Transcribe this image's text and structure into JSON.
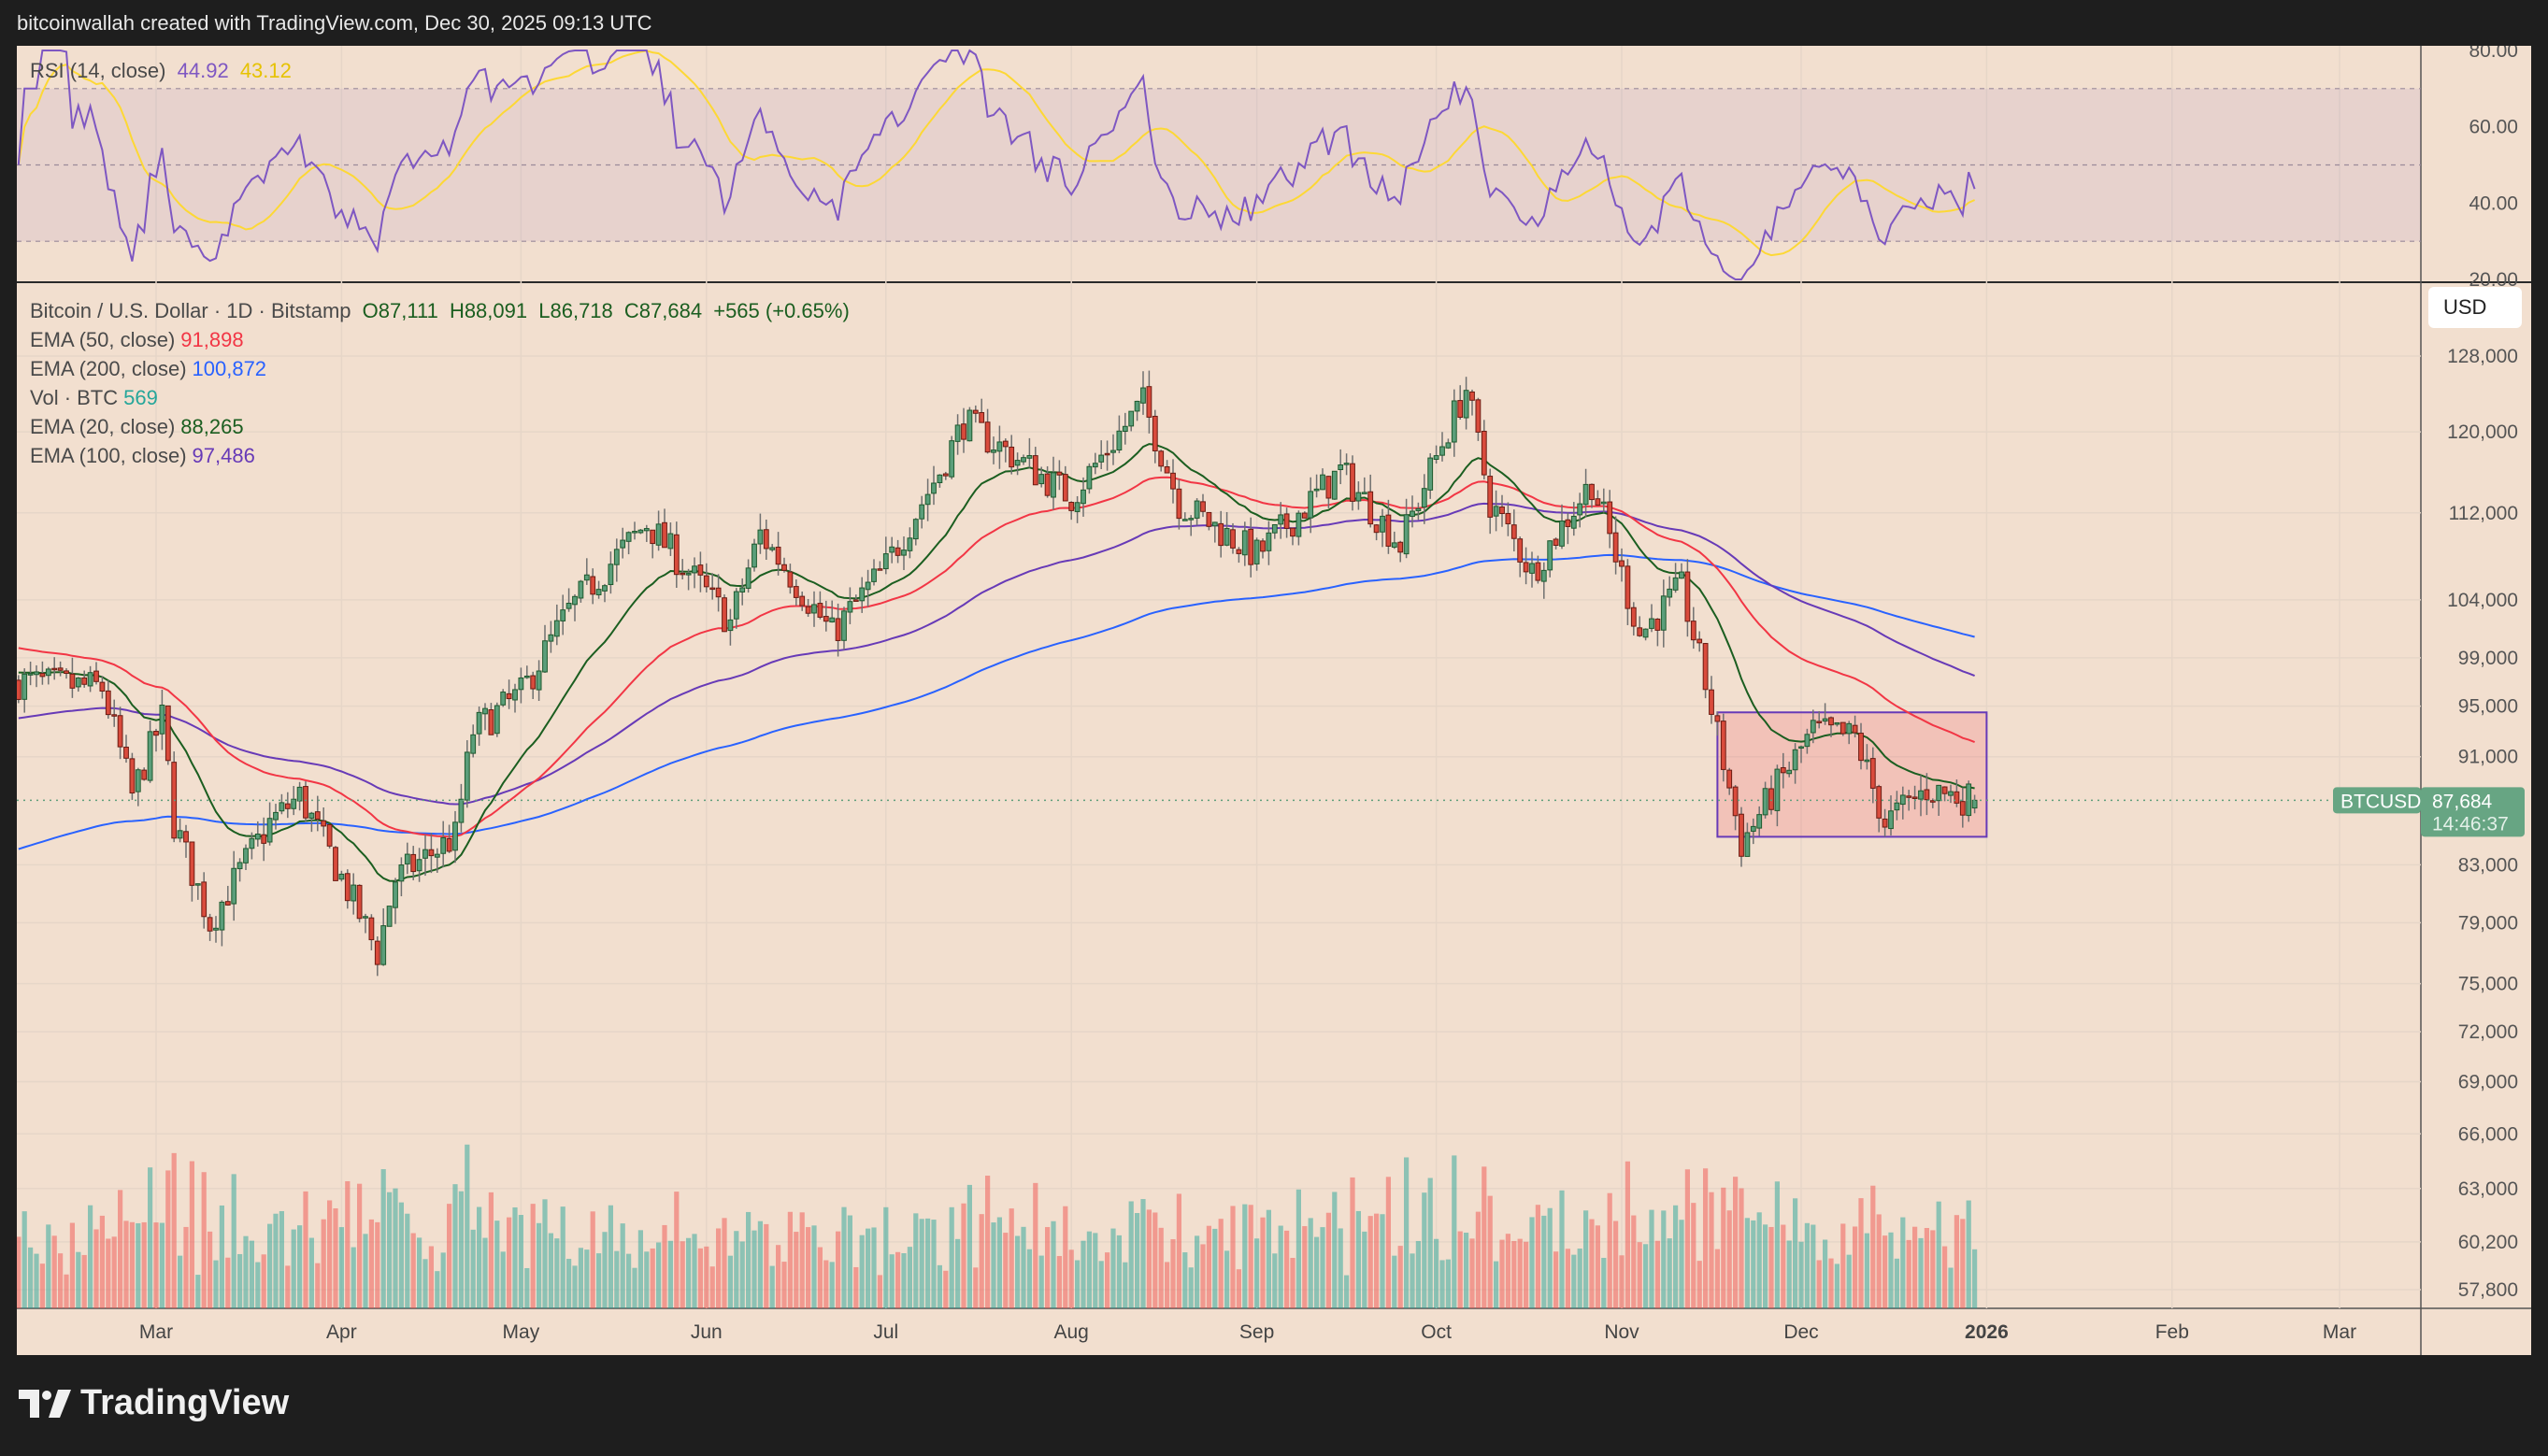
{
  "header": {
    "credit": "bitcoinwallah created with TradingView.com, Dec 30, 2025 09:13 UTC"
  },
  "rsi_legend": {
    "label": "RSI (14, close)",
    "value": "44.92",
    "ma_value": "43.12",
    "color": "#7e57c2",
    "ma_color": "#fdd835"
  },
  "main_legend": {
    "symbol": "Bitcoin / U.S. Dollar · 1D · Bitstamp",
    "open": "O87,111",
    "high": "H88,091",
    "low": "L86,718",
    "close": "C87,684",
    "change": "+565 (+0.65%)",
    "indicators": [
      {
        "label": "EMA (50, close)",
        "value": "91,898",
        "color": "#f23645"
      },
      {
        "label": "EMA (200, close)",
        "value": "100,872",
        "color": "#2962ff"
      },
      {
        "label": "Vol · BTC",
        "value": "569",
        "color": "#26a69a"
      },
      {
        "label": "EMA (20, close)",
        "value": "88,265",
        "color": "#1b5e20"
      },
      {
        "label": "EMA (100, close)",
        "value": "97,486",
        "color": "#673ab7"
      }
    ]
  },
  "price_axis": {
    "currency_button": "USD",
    "labels": [
      "128,000",
      "120,000",
      "112,000",
      "104,000",
      "99,000",
      "95,000",
      "91,000",
      "83,000",
      "79,000",
      "75,000",
      "72,000",
      "69,000",
      "66,000",
      "63,000",
      "60,200",
      "57,800"
    ],
    "rsi_labels": [
      "80.00",
      "60.00",
      "40.00",
      "20.00"
    ],
    "last_symbol": "BTCUSD",
    "last_price": "87,684",
    "countdown": "14:46:37"
  },
  "time_axis": {
    "labels": [
      "Mar",
      "Apr",
      "May",
      "Jun",
      "Jul",
      "Aug",
      "Sep",
      "Oct",
      "Nov",
      "Dec",
      "2026",
      "Feb",
      "Mar"
    ]
  },
  "footer": {
    "brand": "TradingView"
  },
  "chart_data": {
    "type": "candlestick",
    "symbol": "BTCUSD",
    "interval": "1D",
    "start_date": "2025-02-06",
    "end_date": "2025-12-30",
    "close_waypoints": [
      [
        "2025-02-06",
        97000
      ],
      [
        "2025-02-20",
        96500
      ],
      [
        "2025-02-25",
        88000
      ],
      [
        "2025-03-02",
        94000
      ],
      [
        "2025-03-04",
        86000
      ],
      [
        "2025-03-10",
        79000
      ],
      [
        "2025-03-20",
        86000
      ],
      [
        "2025-03-25",
        88000
      ],
      [
        "2025-04-07",
        77000
      ],
      [
        "2025-04-10",
        82000
      ],
      [
        "2025-04-20",
        85000
      ],
      [
        "2025-04-23",
        93000
      ],
      [
        "2025-05-01",
        96000
      ],
      [
        "2025-05-09",
        103000
      ],
      [
        "2025-05-22",
        111000
      ],
      [
        "2025-06-05",
        102000
      ],
      [
        "2025-06-10",
        110000
      ],
      [
        "2025-06-22",
        101000
      ],
      [
        "2025-07-01",
        107000
      ],
      [
        "2025-07-10",
        116000
      ],
      [
        "2025-07-14",
        121000
      ],
      [
        "2025-08-01",
        113500
      ],
      [
        "2025-08-13",
        123000
      ],
      [
        "2025-08-19",
        113000
      ],
      [
        "2025-09-01",
        108000
      ],
      [
        "2025-09-15",
        116000
      ],
      [
        "2025-09-25",
        109000
      ],
      [
        "2025-10-06",
        124500
      ],
      [
        "2025-10-10",
        113000
      ],
      [
        "2025-10-17",
        106500
      ],
      [
        "2025-10-27",
        115000
      ],
      [
        "2025-11-04",
        101000
      ],
      [
        "2025-11-11",
        105000
      ],
      [
        "2025-11-21",
        84500
      ],
      [
        "2025-12-03",
        93000
      ],
      [
        "2025-12-10",
        92500
      ],
      [
        "2025-12-15",
        86000
      ],
      [
        "2025-12-22",
        88500
      ],
      [
        "2025-12-30",
        87684
      ]
    ],
    "ema_seed": {
      "ema20": 98000,
      "ema50": 100000,
      "ema100": 94000,
      "ema200": 84000
    },
    "last_ohlc": {
      "open": 87111,
      "high": 88091,
      "low": 86718,
      "close": 87684
    },
    "last_volume": 569,
    "price_scale": "log",
    "ylim": [
      57800,
      128000
    ],
    "rsi_range": [
      20,
      80
    ],
    "rsi_levels": [
      70,
      50,
      30
    ],
    "range_box": {
      "from": "2025-11-17",
      "to": "2026-01-01",
      "top": 94500,
      "bottom": 85000
    }
  }
}
